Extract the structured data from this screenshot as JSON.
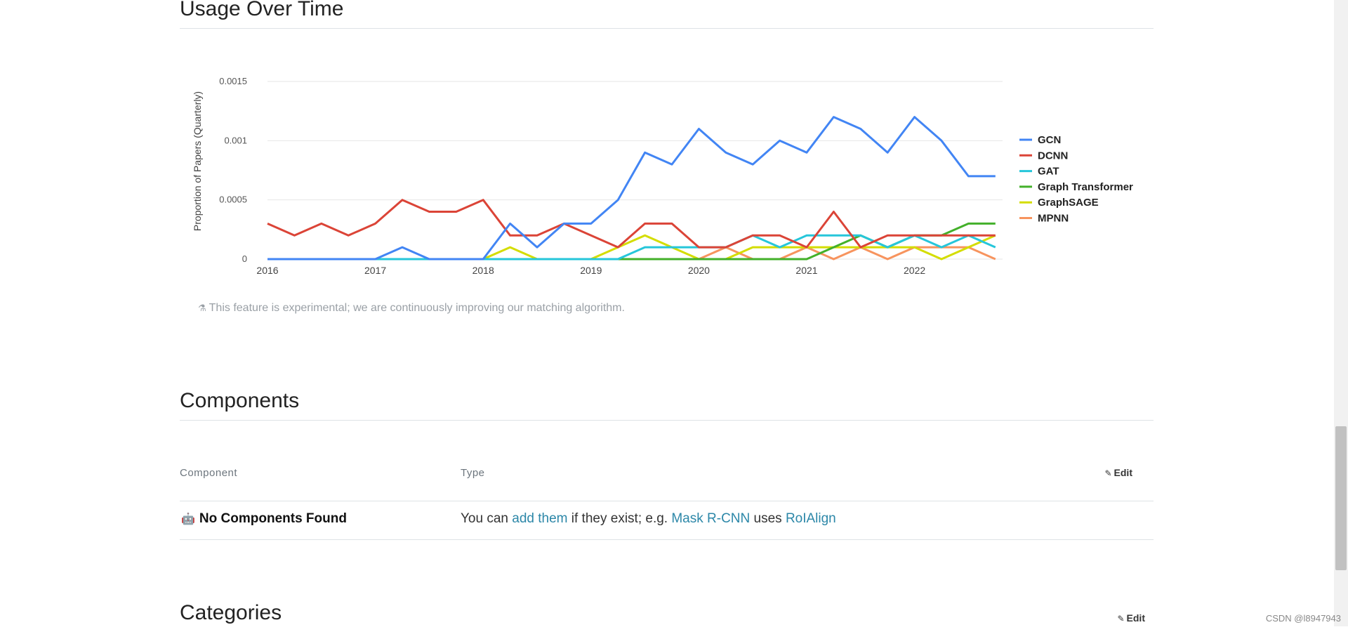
{
  "sections": {
    "usage_title": "Usage Over Time",
    "components_title": "Components",
    "categories_title": "Categories"
  },
  "experimental_note": "This feature is experimental; we are continuously improving our matching algorithm.",
  "components_table": {
    "col_component": "Component",
    "col_type": "Type",
    "edit_label": "Edit",
    "empty_label": "No Components Found",
    "empty_text_1": "You can ",
    "link_add": "add them",
    "empty_text_2": " if they exist; e.g. ",
    "link_example": "Mask R-CNN",
    "empty_text_3": " uses ",
    "link_example2": "RoIAlign"
  },
  "categories_edit_label": "Edit",
  "watermark": "CSDN @l8947943",
  "chart_data": {
    "type": "line",
    "title": "",
    "xlabel": "",
    "ylabel": "Proportion of Papers (Quarterly)",
    "ylim": [
      0,
      0.0015
    ],
    "yticks": [
      "0",
      "0.0005",
      "0.001",
      "0.0015"
    ],
    "xticks": [
      "2016",
      "2017",
      "2018",
      "2019",
      "2020",
      "2021",
      "2022"
    ],
    "legend_position": "right",
    "grid": true,
    "x": [
      "2016Q1",
      "2016Q2",
      "2016Q3",
      "2016Q4",
      "2017Q1",
      "2017Q2",
      "2017Q3",
      "2017Q4",
      "2018Q1",
      "2018Q2",
      "2018Q3",
      "2018Q4",
      "2019Q1",
      "2019Q2",
      "2019Q3",
      "2019Q4",
      "2020Q1",
      "2020Q2",
      "2020Q3",
      "2020Q4",
      "2021Q1",
      "2021Q2",
      "2021Q3",
      "2021Q4",
      "2022Q1",
      "2022Q2",
      "2022Q3",
      "2022Q4"
    ],
    "series": [
      {
        "name": "GCN",
        "color": "#4285f4",
        "values": [
          0,
          0,
          0,
          0,
          0,
          0.0001,
          0,
          0,
          0,
          0.0003,
          0.0001,
          0.0003,
          0.0003,
          0.0005,
          0.0009,
          0.0008,
          0.0011,
          0.0009,
          0.0008,
          0.001,
          0.0009,
          0.0012,
          0.0011,
          0.0009,
          0.0012,
          0.001,
          0.0007,
          0.0007
        ]
      },
      {
        "name": "DCNN",
        "color": "#db4437",
        "values": [
          0.0003,
          0.0002,
          0.0003,
          0.0002,
          0.0003,
          0.0005,
          0.0004,
          0.0004,
          0.0005,
          0.0002,
          0.0002,
          0.0003,
          0.0002,
          0.0001,
          0.0003,
          0.0003,
          0.0001,
          0.0001,
          0.0002,
          0.0002,
          0.0001,
          0.0004,
          0.0001,
          0.0002,
          0.0002,
          0.0002,
          0.0002,
          0.0002
        ]
      },
      {
        "name": "GAT",
        "color": "#26c6da",
        "values": [
          0,
          0,
          0,
          0,
          0,
          0,
          0,
          0,
          0,
          0,
          0,
          0,
          0,
          0,
          0.0001,
          0.0001,
          0.0001,
          0.0001,
          0.0002,
          0.0001,
          0.0002,
          0.0002,
          0.0002,
          0.0001,
          0.0002,
          0.0001,
          0.0002,
          0.0001
        ]
      },
      {
        "name": "Graph Transformer",
        "color": "#43b02a",
        "values": [
          0,
          0,
          0,
          0,
          0,
          0,
          0,
          0,
          0,
          0,
          0,
          0,
          0,
          0,
          0,
          0,
          0,
          0,
          0,
          0,
          0,
          0.0001,
          0.0002,
          0.0001,
          0.0002,
          0.0002,
          0.0003,
          0.0003
        ]
      },
      {
        "name": "GraphSAGE",
        "color": "#d4dd00",
        "values": [
          0,
          0,
          0,
          0,
          0,
          0,
          0,
          0,
          0,
          0.0001,
          0,
          0,
          0,
          0.0001,
          0.0002,
          0.0001,
          0,
          0,
          0.0001,
          0.0001,
          0.0001,
          0.0001,
          0.0001,
          0.0001,
          0.0001,
          0,
          0.0001,
          0.0002
        ]
      },
      {
        "name": "MPNN",
        "color": "#f7945e",
        "values": [
          0,
          0,
          0,
          0,
          0,
          0,
          0,
          0,
          0,
          0,
          0,
          0,
          0,
          0,
          0,
          0,
          0,
          0.0001,
          0,
          0,
          0.0001,
          0,
          0.0001,
          0,
          0.0001,
          0.0001,
          0.0001,
          0
        ]
      }
    ]
  }
}
